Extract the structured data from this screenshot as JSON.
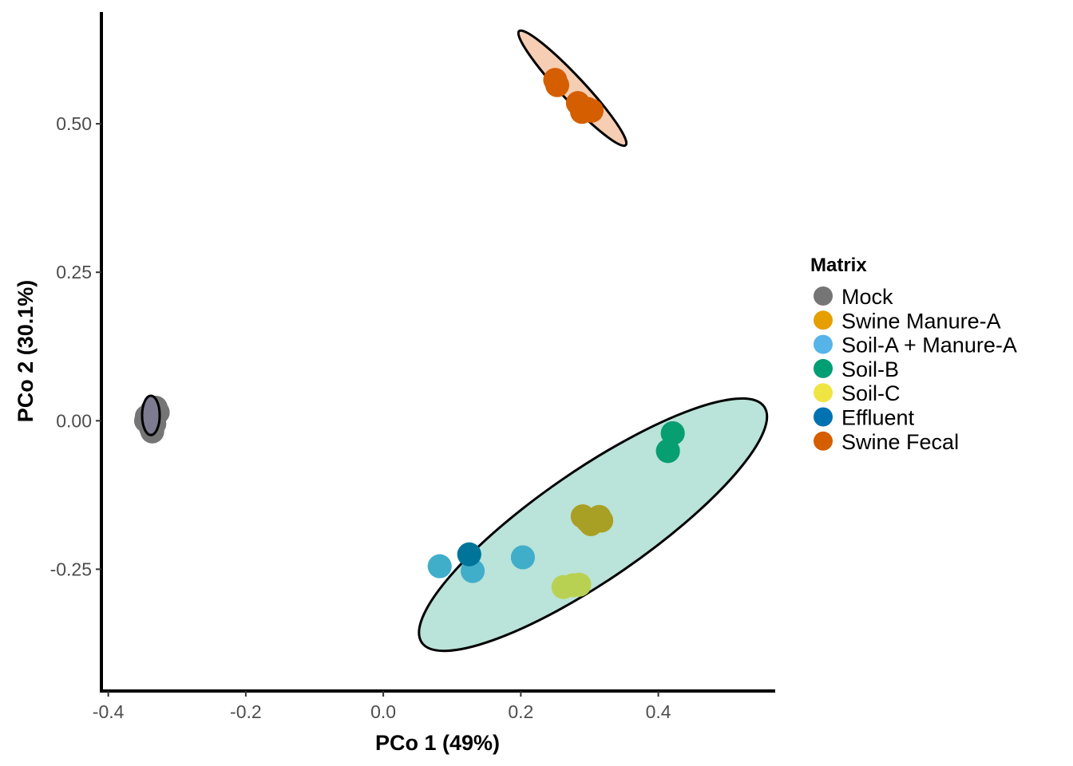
{
  "chart_data": {
    "type": "scatter",
    "title": "",
    "xlabel": "PCo 1  (49%)",
    "ylabel": "PCo 2  (30.1%)",
    "xlim": [
      -0.41,
      0.57
    ],
    "ylim": [
      -0.455,
      0.695
    ],
    "x_ticks": [
      -0.4,
      -0.2,
      0.0,
      0.2,
      0.4
    ],
    "x_tick_labels": [
      "-0.4",
      "-0.2",
      "0.0",
      "0.2",
      "0.4"
    ],
    "y_ticks": [
      -0.25,
      0.0,
      0.25,
      0.5
    ],
    "y_tick_labels": [
      "-0.25",
      "0.00",
      "0.25",
      "0.50"
    ],
    "grid": false,
    "legend": {
      "title": "Matrix",
      "position": "right"
    },
    "series": [
      {
        "name": "Mock",
        "color": "#757575",
        "points": [
          {
            "x": -0.345,
            "y": 0.0
          },
          {
            "x": -0.34,
            "y": 0.01
          },
          {
            "x": -0.336,
            "y": 0.018
          },
          {
            "x": -0.331,
            "y": 0.022
          },
          {
            "x": -0.328,
            "y": 0.014
          },
          {
            "x": -0.333,
            "y": -0.005
          },
          {
            "x": -0.338,
            "y": -0.012
          },
          {
            "x": -0.342,
            "y": 0.004
          },
          {
            "x": -0.334,
            "y": 0.005
          },
          {
            "x": -0.336,
            "y": -0.018
          },
          {
            "x": -0.33,
            "y": 0.016
          },
          {
            "x": -0.344,
            "y": 0.007
          },
          {
            "x": -0.339,
            "y": -0.003
          }
        ]
      },
      {
        "name": "Swine Manure-A",
        "color": "#E69F00",
        "points": [
          {
            "x": 0.29,
            "y": -0.161
          },
          {
            "x": 0.297,
            "y": -0.168
          },
          {
            "x": 0.302,
            "y": -0.174
          },
          {
            "x": 0.314,
            "y": -0.162
          },
          {
            "x": 0.317,
            "y": -0.168
          }
        ]
      },
      {
        "name": "Soil-A + Manure-A",
        "color": "#56B4E9",
        "points": [
          {
            "x": 0.082,
            "y": -0.245
          },
          {
            "x": 0.13,
            "y": -0.253
          },
          {
            "x": 0.203,
            "y": -0.23
          }
        ]
      },
      {
        "name": "Soil-B",
        "color": "#009E73",
        "points": [
          {
            "x": 0.421,
            "y": -0.021
          },
          {
            "x": 0.414,
            "y": -0.051
          }
        ]
      },
      {
        "name": "Soil-C",
        "color": "#F0E442",
        "points": [
          {
            "x": 0.262,
            "y": -0.28
          },
          {
            "x": 0.276,
            "y": -0.277
          },
          {
            "x": 0.285,
            "y": -0.276
          }
        ]
      },
      {
        "name": "Effluent",
        "color": "#0072B2",
        "points": [
          {
            "x": 0.125,
            "y": -0.225
          }
        ]
      },
      {
        "name": "Swine Fecal",
        "color": "#D55E00",
        "points": [
          {
            "x": 0.25,
            "y": 0.574
          },
          {
            "x": 0.253,
            "y": 0.565
          },
          {
            "x": 0.283,
            "y": 0.535
          },
          {
            "x": 0.289,
            "y": 0.52
          },
          {
            "x": 0.297,
            "y": 0.525
          },
          {
            "x": 0.303,
            "y": 0.522
          }
        ]
      }
    ],
    "ellipses": [
      {
        "group": "Mock",
        "fill": "#7d7b90",
        "cx": -0.338,
        "cy": 0.009,
        "rx": 0.0128,
        "ry": 0.033,
        "angle_deg": 0
      },
      {
        "group": "Swine Fecal",
        "fill": "#f6ceb4",
        "cx": 0.275,
        "cy": 0.56,
        "major_end_a": [
          0.198,
          0.635
        ],
        "major_end_b": [
          0.353,
          0.443
        ],
        "minor_half": 0.02
      },
      {
        "group": "Soil cluster",
        "fill": "#bae3d9",
        "cx": 0.305,
        "cy": -0.175,
        "major_end_a": [
          0.042,
          -0.385
        ],
        "major_end_b": [
          0.54,
          0.012
        ],
        "minor_half": 0.092
      }
    ],
    "overlays": [
      {
        "x": 0.29,
        "y": -0.161,
        "color": "#a8a024"
      },
      {
        "x": 0.297,
        "y": -0.168,
        "color": "#a8a024"
      },
      {
        "x": 0.302,
        "y": -0.174,
        "color": "#a8a024"
      },
      {
        "x": 0.314,
        "y": -0.162,
        "color": "#a8a024"
      },
      {
        "x": 0.317,
        "y": -0.168,
        "color": "#a8a024"
      },
      {
        "x": 0.082,
        "y": -0.245,
        "color": "#40aec9"
      },
      {
        "x": 0.13,
        "y": -0.253,
        "color": "#40aec9"
      },
      {
        "x": 0.203,
        "y": -0.23,
        "color": "#40aec9"
      },
      {
        "x": 0.421,
        "y": -0.021,
        "color": "#079e72"
      },
      {
        "x": 0.414,
        "y": -0.051,
        "color": "#079e72"
      },
      {
        "x": 0.262,
        "y": -0.28,
        "color": "#b8d153"
      },
      {
        "x": 0.276,
        "y": -0.277,
        "color": "#b8d153"
      },
      {
        "x": 0.285,
        "y": -0.276,
        "color": "#b8d153"
      },
      {
        "x": 0.125,
        "y": -0.225,
        "color": "#007599"
      }
    ]
  }
}
